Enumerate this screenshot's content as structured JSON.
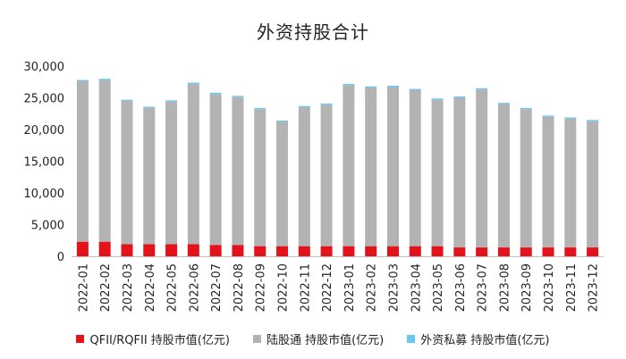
{
  "chart_data": {
    "type": "bar",
    "stacked": true,
    "title": "外资持股合计",
    "categories": [
      "2022-01",
      "2022-02",
      "2022-03",
      "2022-04",
      "2022-05",
      "2022-06",
      "2022-07",
      "2022-08",
      "2022-09",
      "2022-10",
      "2022-11",
      "2022-12",
      "2023-01",
      "2023-02",
      "2023-03",
      "2023-04",
      "2023-05",
      "2023-06",
      "2023-07",
      "2023-08",
      "2023-09",
      "2023-10",
      "2023-11",
      "2023-12"
    ],
    "series": [
      {
        "name": "QFII/RQFII 持股市值(亿元)",
        "color": "#e3121b",
        "values": [
          2300,
          2300,
          1900,
          1900,
          1900,
          1900,
          1800,
          1800,
          1600,
          1600,
          1600,
          1600,
          1600,
          1600,
          1600,
          1600,
          1600,
          1400,
          1400,
          1400,
          1400,
          1400,
          1400,
          1400
        ]
      },
      {
        "name": "陆股通 持股市值(亿元)",
        "color": "#b3b3b3",
        "values": [
          25300,
          25500,
          22600,
          21500,
          22500,
          25300,
          23800,
          23300,
          21600,
          19600,
          21900,
          22300,
          25400,
          25000,
          25100,
          24600,
          23100,
          23600,
          24900,
          22600,
          21800,
          20600,
          20300,
          19900
        ]
      },
      {
        "name": "外资私募 持股市值(亿元)",
        "color": "#6cc7ef",
        "values": [
          200,
          200,
          200,
          200,
          200,
          200,
          200,
          200,
          200,
          200,
          200,
          200,
          200,
          200,
          200,
          200,
          200,
          200,
          200,
          200,
          200,
          200,
          200,
          200
        ]
      }
    ],
    "ylim": [
      0,
      30000
    ],
    "yticks": [
      "0",
      "5,000",
      "10,000",
      "15,000",
      "20,000",
      "25,000",
      "30,000"
    ],
    "ytick_values": [
      0,
      5000,
      10000,
      15000,
      20000,
      25000,
      30000
    ],
    "grid": false,
    "legend": "bottom"
  }
}
